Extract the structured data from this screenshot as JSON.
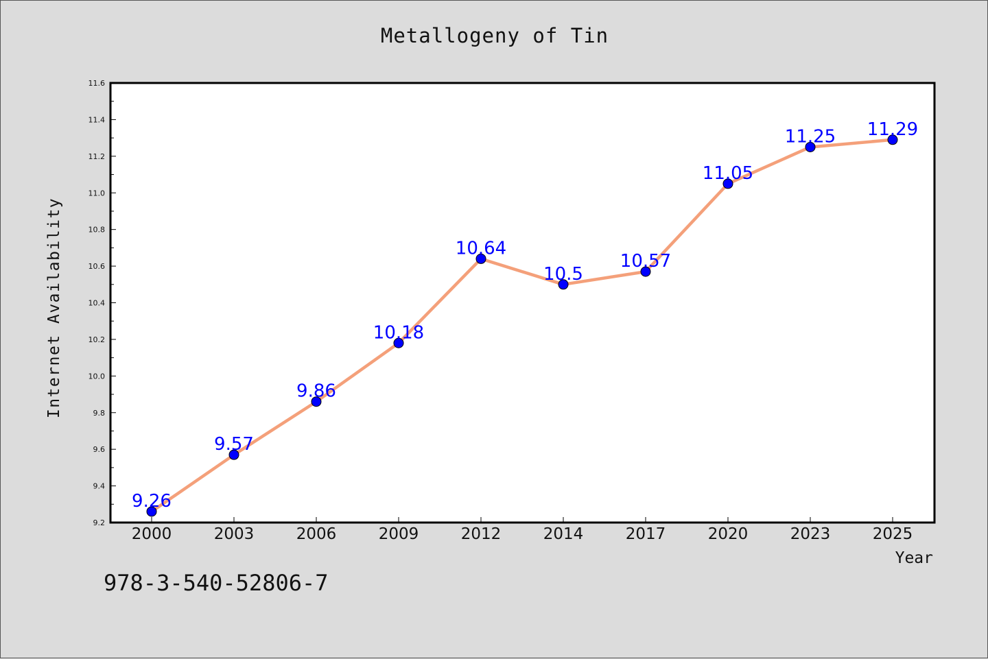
{
  "chart_data": {
    "type": "line",
    "title": "Metallogeny of Tin",
    "xlabel": "Year",
    "ylabel": "Internet Availability",
    "categories": [
      "2000",
      "2003",
      "2006",
      "2009",
      "2012",
      "2014",
      "2017",
      "2020",
      "2023",
      "2025"
    ],
    "series": [
      {
        "values": [
          9.26,
          9.57,
          9.86,
          10.18,
          10.64,
          10.5,
          10.57,
          11.05,
          11.25,
          11.29
        ],
        "line_color": "#f4a07a",
        "marker_color": "#0000ff"
      }
    ],
    "ylim": [
      9.2,
      11.6
    ],
    "yticks": [
      "9.2",
      "9.4",
      "9.6",
      "9.8",
      "10.0",
      "10.2",
      "10.4",
      "10.6",
      "10.8",
      "11.0",
      "11.2",
      "11.4",
      "11.6"
    ],
    "data_labels": [
      "9.26",
      "9.57",
      "9.86",
      "10.18",
      "10.64",
      "10.5",
      "10.57",
      "11.05",
      "11.25",
      "11.29"
    ],
    "grid": false,
    "legend": "none"
  },
  "footer": {
    "id_text": "978-3-540-52806-7"
  }
}
